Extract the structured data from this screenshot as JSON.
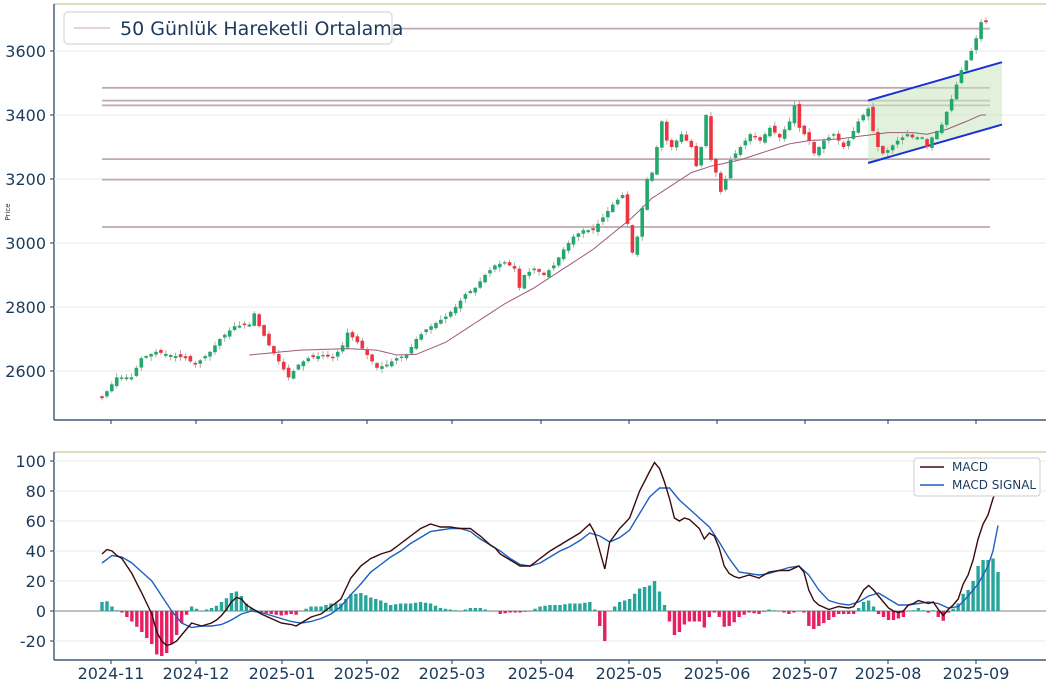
{
  "chart_data": [
    {
      "type": "candlestick",
      "ylabel": "Price",
      "ylim": [
        2460,
        3710
      ],
      "legend": {
        "entry": "50 Günlük Hareketli Ortalama",
        "placement": "top-left"
      },
      "x_tick_labels": [
        "2024-11",
        "2024-12",
        "2025-01",
        "2025-02",
        "2025-03",
        "2025-04",
        "2025-05",
        "2025-06",
        "2025-07",
        "2025-08",
        "2025-09"
      ],
      "y_ticks": [
        2600,
        2800,
        3000,
        3200,
        3400,
        3600
      ],
      "horizontal_levels": [
        3670,
        3485,
        3445,
        3430,
        3262,
        3198,
        3050
      ],
      "close_anchors": [
        [
          0,
          2515
        ],
        [
          3,
          2580
        ],
        [
          6,
          2580
        ],
        [
          8,
          2640
        ],
        [
          11,
          2660
        ],
        [
          14,
          2650
        ],
        [
          17,
          2640
        ],
        [
          19,
          2620
        ],
        [
          22,
          2660
        ],
        [
          24,
          2700
        ],
        [
          27,
          2740
        ],
        [
          30,
          2745
        ],
        [
          31,
          2780
        ],
        [
          32,
          2740
        ],
        [
          34,
          2680
        ],
        [
          36,
          2630
        ],
        [
          38,
          2580
        ],
        [
          40,
          2620
        ],
        [
          42,
          2640
        ],
        [
          45,
          2650
        ],
        [
          47,
          2640
        ],
        [
          49,
          2680
        ],
        [
          50,
          2720
        ],
        [
          52,
          2690
        ],
        [
          54,
          2650
        ],
        [
          56,
          2610
        ],
        [
          58,
          2620
        ],
        [
          60,
          2640
        ],
        [
          62,
          2650
        ],
        [
          64,
          2700
        ],
        [
          66,
          2730
        ],
        [
          68,
          2750
        ],
        [
          70,
          2770
        ],
        [
          72,
          2800
        ],
        [
          74,
          2840
        ],
        [
          76,
          2860
        ],
        [
          78,
          2900
        ],
        [
          80,
          2930
        ],
        [
          82,
          2940
        ],
        [
          84,
          2920
        ],
        [
          85,
          2860
        ],
        [
          86,
          2900
        ],
        [
          88,
          2920
        ],
        [
          90,
          2900
        ],
        [
          92,
          2930
        ],
        [
          94,
          2980
        ],
        [
          96,
          3020
        ],
        [
          98,
          3040
        ],
        [
          100,
          3040
        ],
        [
          102,
          3080
        ],
        [
          104,
          3120
        ],
        [
          106,
          3150
        ],
        [
          107,
          3060
        ],
        [
          108,
          2970
        ],
        [
          109,
          3020
        ],
        [
          110,
          3110
        ],
        [
          111,
          3200
        ],
        [
          112,
          3220
        ],
        [
          113,
          3300
        ],
        [
          114,
          3380
        ],
        [
          115,
          3320
        ],
        [
          116,
          3300
        ],
        [
          118,
          3340
        ],
        [
          120,
          3300
        ],
        [
          121,
          3240
        ],
        [
          122,
          3300
        ],
        [
          123,
          3400
        ],
        [
          124,
          3260
        ],
        [
          125,
          3220
        ],
        [
          126,
          3160
        ],
        [
          127,
          3200
        ],
        [
          128,
          3260
        ],
        [
          130,
          3300
        ],
        [
          132,
          3340
        ],
        [
          134,
          3320
        ],
        [
          136,
          3360
        ],
        [
          138,
          3330
        ],
        [
          140,
          3380
        ],
        [
          141,
          3430
        ],
        [
          142,
          3360
        ],
        [
          144,
          3320
        ],
        [
          145,
          3280
        ],
        [
          146,
          3300
        ],
        [
          147,
          3320
        ],
        [
          149,
          3340
        ],
        [
          150,
          3320
        ],
        [
          151,
          3300
        ],
        [
          152,
          3320
        ],
        [
          154,
          3380
        ],
        [
          156,
          3420
        ],
        [
          157,
          3350
        ],
        [
          158,
          3300
        ],
        [
          159,
          3280
        ],
        [
          160,
          3290
        ],
        [
          162,
          3320
        ],
        [
          164,
          3340
        ],
        [
          165,
          3330
        ],
        [
          167,
          3330
        ],
        [
          168,
          3300
        ],
        [
          169,
          3330
        ],
        [
          171,
          3370
        ],
        [
          173,
          3450
        ],
        [
          175,
          3540
        ],
        [
          177,
          3600
        ],
        [
          178,
          3640
        ],
        [
          179,
          3690
        ]
      ],
      "moving_average_anchors": [
        [
          30,
          2650
        ],
        [
          40,
          2665
        ],
        [
          50,
          2670
        ],
        [
          56,
          2665
        ],
        [
          60,
          2650
        ],
        [
          64,
          2652
        ],
        [
          70,
          2690
        ],
        [
          76,
          2750
        ],
        [
          82,
          2810
        ],
        [
          88,
          2860
        ],
        [
          94,
          2920
        ],
        [
          100,
          2980
        ],
        [
          104,
          3030
        ],
        [
          108,
          3080
        ],
        [
          112,
          3140
        ],
        [
          116,
          3180
        ],
        [
          120,
          3220
        ],
        [
          124,
          3240
        ],
        [
          130,
          3260
        ],
        [
          136,
          3290
        ],
        [
          140,
          3310
        ],
        [
          144,
          3320
        ],
        [
          150,
          3325
        ],
        [
          155,
          3335
        ],
        [
          160,
          3345
        ],
        [
          165,
          3345
        ],
        [
          168,
          3340
        ],
        [
          172,
          3355
        ],
        [
          176,
          3380
        ],
        [
          179,
          3400
        ]
      ],
      "channel": {
        "upper": [
          [
            156,
            3445
          ],
          [
            180,
            3565
          ]
        ],
        "lower": [
          [
            156,
            3250
          ],
          [
            180,
            3370
          ]
        ],
        "shaded_region": [
          156,
          179
        ]
      }
    },
    {
      "type": "macd",
      "ylim": [
        -31,
        106
      ],
      "y_ticks": [
        -20,
        0,
        20,
        40,
        60,
        80,
        100
      ],
      "legend": {
        "entries": [
          "MACD",
          "MACD SIGNAL"
        ],
        "placement": "top-right"
      },
      "macd_anchors": [
        [
          0,
          38
        ],
        [
          1,
          41
        ],
        [
          2,
          40
        ],
        [
          3,
          37
        ],
        [
          4,
          35
        ],
        [
          6,
          25
        ],
        [
          8,
          12
        ],
        [
          9,
          5
        ],
        [
          10,
          -2
        ],
        [
          11,
          -14
        ],
        [
          12,
          -20
        ],
        [
          13,
          -23
        ],
        [
          14,
          -22
        ],
        [
          15,
          -20
        ],
        [
          16,
          -16
        ],
        [
          17,
          -12
        ],
        [
          18,
          -8
        ],
        [
          19,
          -9
        ],
        [
          20,
          -10
        ],
        [
          21,
          -9
        ],
        [
          22,
          -8
        ],
        [
          23,
          -6
        ],
        [
          24,
          -3
        ],
        [
          25,
          1
        ],
        [
          26,
          6
        ],
        [
          27,
          9
        ],
        [
          28,
          8
        ],
        [
          29,
          4
        ],
        [
          30,
          2
        ],
        [
          32,
          -2
        ],
        [
          34,
          -5
        ],
        [
          36,
          -8
        ],
        [
          38,
          -9
        ],
        [
          39,
          -10
        ],
        [
          40,
          -8
        ],
        [
          42,
          -4
        ],
        [
          44,
          -2
        ],
        [
          46,
          3
        ],
        [
          48,
          8
        ],
        [
          50,
          22
        ],
        [
          52,
          30
        ],
        [
          54,
          35
        ],
        [
          56,
          38
        ],
        [
          58,
          40
        ],
        [
          60,
          45
        ],
        [
          62,
          50
        ],
        [
          64,
          55
        ],
        [
          66,
          58
        ],
        [
          68,
          56
        ],
        [
          70,
          56
        ],
        [
          72,
          55
        ],
        [
          74,
          55
        ],
        [
          76,
          50
        ],
        [
          78,
          44
        ],
        [
          79,
          42
        ],
        [
          80,
          38
        ],
        [
          82,
          34
        ],
        [
          84,
          30
        ],
        [
          86,
          30
        ],
        [
          88,
          35
        ],
        [
          90,
          40
        ],
        [
          92,
          44
        ],
        [
          94,
          48
        ],
        [
          96,
          52
        ],
        [
          98,
          58
        ],
        [
          99,
          52
        ],
        [
          100,
          40
        ],
        [
          101,
          28
        ],
        [
          102,
          46
        ],
        [
          104,
          55
        ],
        [
          106,
          62
        ],
        [
          108,
          80
        ],
        [
          110,
          93
        ],
        [
          111,
          99
        ],
        [
          112,
          95
        ],
        [
          113,
          86
        ],
        [
          114,
          75
        ],
        [
          115,
          62
        ],
        [
          116,
          60
        ],
        [
          117,
          62
        ],
        [
          118,
          61
        ],
        [
          120,
          55
        ],
        [
          121,
          48
        ],
        [
          122,
          52
        ],
        [
          123,
          50
        ],
        [
          124,
          42
        ],
        [
          125,
          30
        ],
        [
          126,
          25
        ],
        [
          127,
          23
        ],
        [
          128,
          22
        ],
        [
          130,
          24
        ],
        [
          132,
          22
        ],
        [
          134,
          26
        ],
        [
          136,
          27
        ],
        [
          138,
          27
        ],
        [
          140,
          30
        ],
        [
          141,
          26
        ],
        [
          142,
          14
        ],
        [
          143,
          7
        ],
        [
          144,
          4
        ],
        [
          146,
          1
        ],
        [
          148,
          3
        ],
        [
          150,
          2
        ],
        [
          151,
          3
        ],
        [
          152,
          8
        ],
        [
          153,
          14
        ],
        [
          154,
          17
        ],
        [
          155,
          14
        ],
        [
          156,
          10
        ],
        [
          157,
          6
        ],
        [
          158,
          2
        ],
        [
          159,
          0
        ],
        [
          160,
          -1
        ],
        [
          161,
          0
        ],
        [
          162,
          4
        ],
        [
          163,
          5
        ],
        [
          164,
          7
        ],
        [
          165,
          6
        ],
        [
          166,
          5
        ],
        [
          167,
          6
        ],
        [
          168,
          1
        ],
        [
          169,
          -3
        ],
        [
          170,
          1
        ],
        [
          171,
          4
        ],
        [
          172,
          8
        ],
        [
          173,
          18
        ],
        [
          174,
          24
        ],
        [
          175,
          34
        ],
        [
          176,
          48
        ],
        [
          177,
          58
        ],
        [
          178,
          64
        ],
        [
          179,
          75
        ],
        [
          180,
          83
        ]
      ],
      "signal_anchors": [
        [
          0,
          32
        ],
        [
          2,
          37
        ],
        [
          4,
          36
        ],
        [
          6,
          32
        ],
        [
          8,
          26
        ],
        [
          10,
          20
        ],
        [
          12,
          10
        ],
        [
          14,
          0
        ],
        [
          16,
          -8
        ],
        [
          18,
          -11
        ],
        [
          20,
          -10
        ],
        [
          22,
          -10
        ],
        [
          24,
          -9
        ],
        [
          26,
          -6
        ],
        [
          28,
          -2
        ],
        [
          30,
          0
        ],
        [
          32,
          -1
        ],
        [
          34,
          -3
        ],
        [
          36,
          -5
        ],
        [
          38,
          -7
        ],
        [
          40,
          -8
        ],
        [
          42,
          -7
        ],
        [
          44,
          -5
        ],
        [
          46,
          -2
        ],
        [
          48,
          3
        ],
        [
          50,
          11
        ],
        [
          52,
          18
        ],
        [
          54,
          26
        ],
        [
          56,
          31
        ],
        [
          58,
          36
        ],
        [
          60,
          40
        ],
        [
          62,
          45
        ],
        [
          64,
          49
        ],
        [
          66,
          53
        ],
        [
          68,
          54
        ],
        [
          70,
          55
        ],
        [
          72,
          55
        ],
        [
          74,
          53
        ],
        [
          76,
          48
        ],
        [
          78,
          44
        ],
        [
          80,
          40
        ],
        [
          82,
          35
        ],
        [
          84,
          31
        ],
        [
          86,
          30
        ],
        [
          88,
          32
        ],
        [
          90,
          36
        ],
        [
          92,
          40
        ],
        [
          94,
          43
        ],
        [
          96,
          47
        ],
        [
          98,
          52
        ],
        [
          100,
          50
        ],
        [
          102,
          46
        ],
        [
          104,
          49
        ],
        [
          106,
          54
        ],
        [
          108,
          65
        ],
        [
          110,
          76
        ],
        [
          112,
          82
        ],
        [
          114,
          82
        ],
        [
          116,
          74
        ],
        [
          118,
          68
        ],
        [
          120,
          62
        ],
        [
          122,
          56
        ],
        [
          124,
          46
        ],
        [
          126,
          35
        ],
        [
          128,
          26
        ],
        [
          130,
          25
        ],
        [
          132,
          24
        ],
        [
          134,
          25
        ],
        [
          136,
          27
        ],
        [
          138,
          29
        ],
        [
          140,
          30
        ],
        [
          142,
          24
        ],
        [
          144,
          14
        ],
        [
          146,
          7
        ],
        [
          148,
          5
        ],
        [
          150,
          4
        ],
        [
          152,
          6
        ],
        [
          154,
          10
        ],
        [
          156,
          12
        ],
        [
          158,
          8
        ],
        [
          160,
          4
        ],
        [
          162,
          4
        ],
        [
          164,
          5
        ],
        [
          166,
          6
        ],
        [
          168,
          5
        ],
        [
          170,
          2
        ],
        [
          172,
          3
        ],
        [
          174,
          10
        ],
        [
          176,
          18
        ],
        [
          178,
          30
        ],
        [
          179,
          40
        ],
        [
          180,
          57
        ]
      ]
    }
  ]
}
